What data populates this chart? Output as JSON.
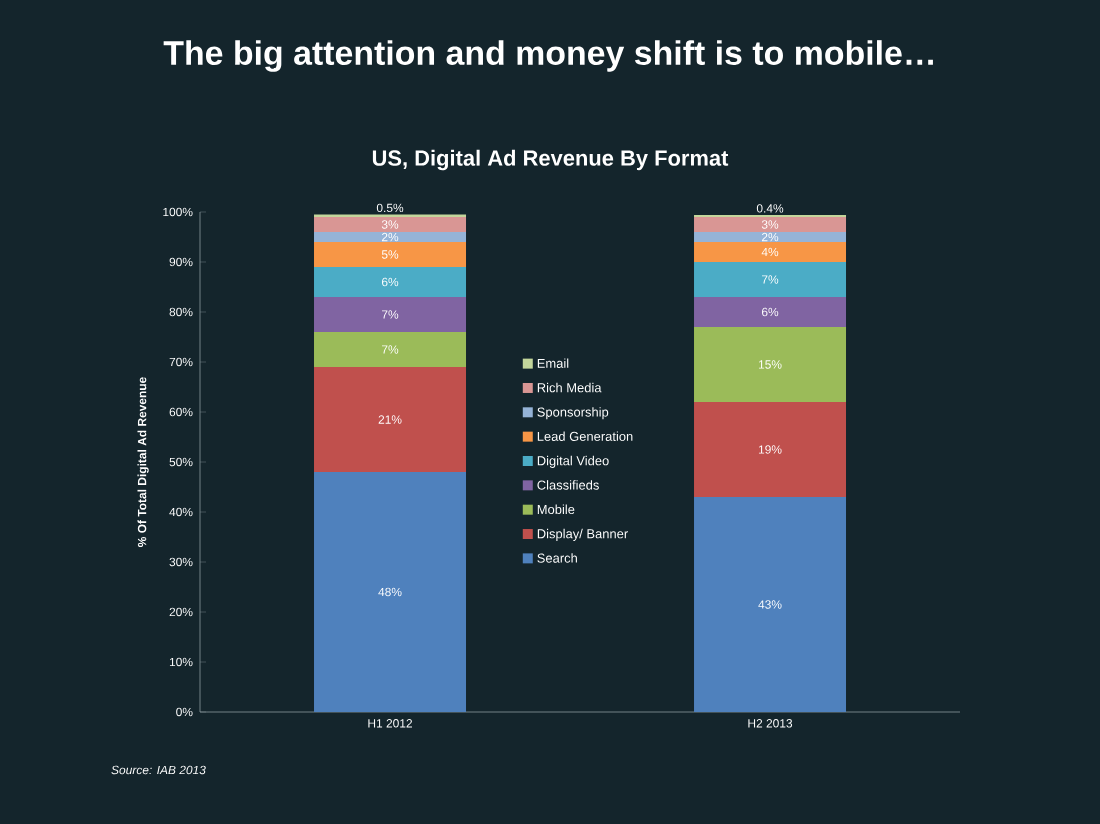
{
  "chart_data": {
    "type": "bar",
    "stacked": true,
    "title": "The big attention and money shift is to mobile…",
    "subtitle": "US, Digital Ad Revenue By Format",
    "ylabel": "% Of Total Digital Ad Revenue",
    "categories": [
      "H1 2012",
      "H2 2013"
    ],
    "ylim": [
      0,
      100
    ],
    "yticks": [
      {
        "value": 0,
        "label": "0%"
      },
      {
        "value": 10,
        "label": "10%"
      },
      {
        "value": 20,
        "label": "20%"
      },
      {
        "value": 30,
        "label": "30%"
      },
      {
        "value": 40,
        "label": "40%"
      },
      {
        "value": 50,
        "label": "50%"
      },
      {
        "value": 60,
        "label": "60%"
      },
      {
        "value": 70,
        "label": "70%"
      },
      {
        "value": 80,
        "label": "80%"
      },
      {
        "value": 90,
        "label": "90%"
      },
      {
        "value": 100,
        "label": "100%"
      }
    ],
    "series": [
      {
        "name": "Search",
        "color": "#4f81bd",
        "values": [
          48,
          43
        ],
        "value_labels": [
          "48%",
          "43%"
        ]
      },
      {
        "name": "Display/ Banner",
        "color": "#c0504d",
        "values": [
          21,
          19
        ],
        "value_labels": [
          "21%",
          "19%"
        ]
      },
      {
        "name": "Mobile",
        "color": "#9bbb59",
        "values": [
          7,
          15
        ],
        "value_labels": [
          "7%",
          "15%"
        ]
      },
      {
        "name": "Classifieds",
        "color": "#8064a2",
        "values": [
          7,
          6
        ],
        "value_labels": [
          "7%",
          "6%"
        ]
      },
      {
        "name": "Digital Video",
        "color": "#4bacc6",
        "values": [
          6,
          7
        ],
        "value_labels": [
          "6%",
          "7%"
        ]
      },
      {
        "name": "Lead Generation",
        "color": "#f79646",
        "values": [
          5,
          4
        ],
        "value_labels": [
          "5%",
          "4%"
        ]
      },
      {
        "name": "Sponsorship",
        "color": "#95b3d7",
        "values": [
          2,
          2
        ],
        "value_labels": [
          "2%",
          "2%"
        ]
      },
      {
        "name": "Rich Media",
        "color": "#d99694",
        "values": [
          3,
          3
        ],
        "value_labels": [
          "3%",
          "3%"
        ]
      },
      {
        "name": "Email",
        "color": "#c3d69b",
        "values": [
          0.5,
          0.4
        ],
        "value_labels": [
          "0.5%",
          "0.4%"
        ]
      }
    ],
    "legend": "center",
    "annotations": [
      "Source: IAB 2013"
    ]
  }
}
